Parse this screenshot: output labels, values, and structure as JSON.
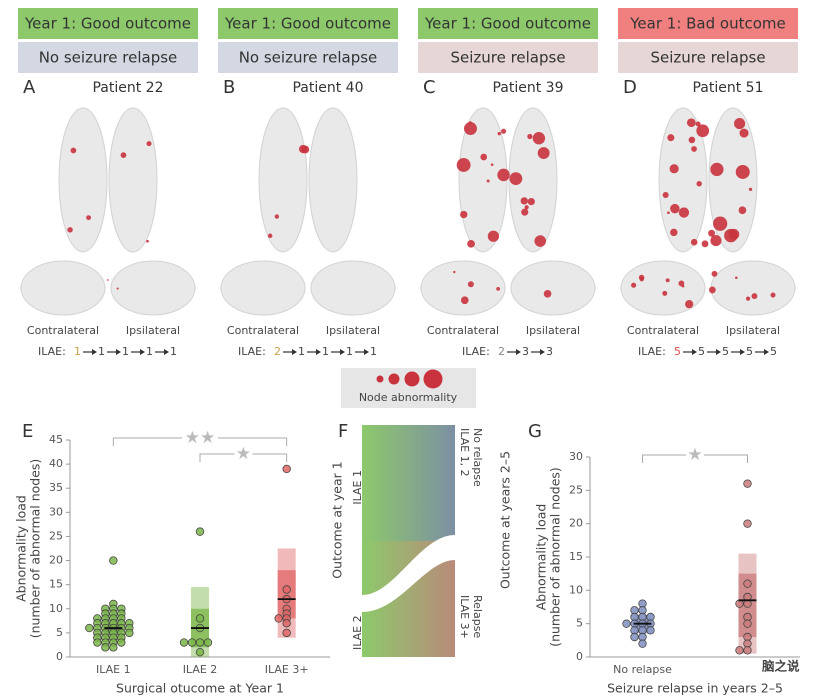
{
  "panels": [
    {
      "letter": "A",
      "outcome": "Year 1: Good outcome",
      "outcome_color": "#8dc96b",
      "relapse": "No seizure relapse",
      "relapse_color": "#d3d8e3",
      "patient": "Patient 22",
      "contralateral": "Contralateral",
      "ipsilateral": "Ipsilateral",
      "ilae_prefix": "ILAE:",
      "ilae": [
        "1",
        "1",
        "1",
        "1",
        "1"
      ],
      "first_color": "#c9a24a"
    },
    {
      "letter": "B",
      "outcome": "Year 1: Good outcome",
      "outcome_color": "#8dc96b",
      "relapse": "No seizure relapse",
      "relapse_color": "#d3d8e3",
      "patient": "Patient 40",
      "contralateral": "Contralateral",
      "ipsilateral": "Ipsilateral",
      "ilae_prefix": "ILAE:",
      "ilae": [
        "2",
        "1",
        "1",
        "1",
        "1"
      ],
      "first_color": "#c9a24a"
    },
    {
      "letter": "C",
      "outcome": "Year 1: Good outcome",
      "outcome_color": "#8dc96b",
      "relapse": "Seizure relapse",
      "relapse_color": "#e6d6d6",
      "patient": "Patient 39",
      "contralateral": "Contralateral",
      "ipsilateral": "Ipsilateral",
      "ilae_prefix": "ILAE:",
      "ilae": [
        "2",
        "3",
        "3"
      ],
      "first_color": "#888888"
    },
    {
      "letter": "D",
      "outcome": "Year 1: Bad outcome",
      "outcome_color": "#f08080",
      "relapse": "Seizure relapse",
      "relapse_color": "#e6d6d6",
      "patient": "Patient 51",
      "contralateral": "Contralateral",
      "ipsilateral": "Ipsilateral",
      "ilae_prefix": "ILAE:",
      "ilae": [
        "5",
        "5",
        "5",
        "5",
        "5"
      ],
      "first_color": "#d9534f"
    }
  ],
  "legend": "Node abnormality",
  "chart_data": [
    {
      "type": "strip",
      "letter": "E",
      "ylabel": [
        "Abnormality load",
        "(number of abnormal nodes)"
      ],
      "xlabel": "Surgical otucome at Year 1",
      "categories": [
        "ILAE 1",
        "ILAE 2",
        "ILAE 3+"
      ],
      "ylim": [
        0,
        45
      ],
      "yticks": [
        0,
        5,
        10,
        15,
        20,
        25,
        30,
        35,
        40,
        45
      ],
      "groups": [
        {
          "color": "#7ab648",
          "values": [
            20,
            11,
            10,
            10,
            10,
            9,
            9,
            9,
            8,
            8,
            8,
            8,
            7,
            7,
            7,
            7,
            7,
            6,
            6,
            6,
            6,
            6,
            6,
            5,
            5,
            5,
            5,
            5,
            4,
            4,
            4,
            4,
            3,
            3,
            3,
            3,
            2,
            2
          ],
          "center": 6,
          "outer": [
            3,
            9
          ],
          "inner": [
            5,
            7
          ]
        },
        {
          "color": "#7ab648",
          "values": [
            26,
            8,
            6,
            3,
            3,
            3,
            3,
            1
          ],
          "center": 6,
          "outer": [
            0,
            14.5
          ],
          "inner": [
            2,
            10
          ]
        },
        {
          "color": "#e06666",
          "values": [
            39,
            14,
            12,
            10,
            9,
            8,
            8,
            7,
            5
          ],
          "center": 12,
          "outer": [
            4,
            22.5
          ],
          "inner": [
            8,
            18
          ]
        }
      ],
      "annotations": [
        {
          "text": "★★",
          "from": 0,
          "to": 2
        },
        {
          "text": "★",
          "from": 1,
          "to": 2
        }
      ]
    },
    {
      "type": "strip",
      "letter": "G",
      "ylabel": [
        "Abnormality load",
        "(number of abnormal nodes)"
      ],
      "xlabel": "Seizure relapse in years 2–5",
      "categories": [
        "No relapse",
        null
      ],
      "ylim": [
        0,
        30
      ],
      "yticks": [
        0,
        5,
        10,
        15,
        20,
        25,
        30
      ],
      "groups": [
        {
          "color": "#7f8fbf",
          "values": [
            8,
            7,
            7,
            6,
            6,
            6,
            5,
            5,
            5,
            5,
            4,
            4,
            4,
            3,
            3,
            2
          ],
          "center": 5,
          "outer": [
            3.5,
            6.3
          ],
          "inner": [
            4.3,
            5.8
          ]
        },
        {
          "color": "#c97b7b",
          "values": [
            26,
            20,
            11,
            9,
            8,
            8,
            6,
            5,
            3,
            2,
            1,
            1
          ],
          "center": 8.5,
          "outer": [
            0.5,
            15.5
          ],
          "inner": [
            3,
            12.5
          ]
        }
      ],
      "annotations": [
        {
          "text": "★",
          "from": 0,
          "to": 1
        }
      ]
    }
  ],
  "sankey": {
    "letter": "F",
    "left_title": "Outcome at year 1",
    "left_top": "ILAE 1",
    "left_bottom": "ILAE 2",
    "right_title": "Outcome at years 2–5",
    "right_top": [
      "ILAE 1, 2",
      "No relapse"
    ],
    "right_bottom": [
      "ILAE 3+",
      "Relapse"
    ]
  },
  "watermark": "脑之说"
}
